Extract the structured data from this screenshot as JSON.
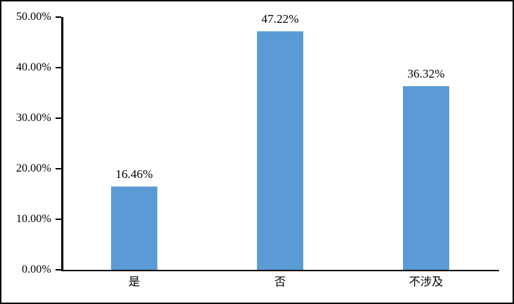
{
  "chart_data": {
    "type": "bar",
    "categories": [
      "是",
      "否",
      "不涉及"
    ],
    "values": [
      16.46,
      47.22,
      36.32
    ],
    "data_labels": [
      "16.46%",
      "47.22%",
      "36.32%"
    ],
    "y_tick_labels": [
      "0.00%",
      "10.00%",
      "20.00%",
      "30.00%",
      "40.00%",
      "50.00%"
    ],
    "y_tick_values": [
      0,
      10,
      20,
      30,
      40,
      50
    ],
    "ylim": [
      0,
      50
    ],
    "title": "",
    "xlabel": "",
    "ylabel": "",
    "grid": false,
    "legend": false,
    "colors": {
      "bar": "#5B9BD5",
      "axis": "#000000",
      "text": "#000000",
      "background": "#FFFFFF",
      "frame_border": "#000000"
    }
  }
}
